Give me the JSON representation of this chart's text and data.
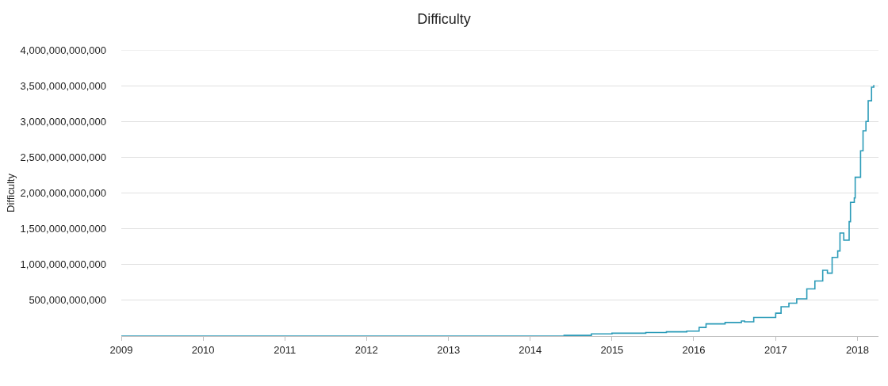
{
  "chart_data": {
    "type": "step",
    "title": "Difficulty",
    "ylabel": "Difficulty",
    "x": [
      "2009-01-01",
      "2013-01-01",
      "2014-01-01",
      "2014-06-01",
      "2014-10-01",
      "2015-01-01",
      "2015-06-01",
      "2015-09-01",
      "2015-12-01",
      "2016-01-25",
      "2016-02-25",
      "2016-05-20",
      "2016-08-01",
      "2016-08-15",
      "2016-09-25",
      "2016-11-15",
      "2017-01-01",
      "2017-01-25",
      "2017-03-01",
      "2017-04-05",
      "2017-04-25",
      "2017-05-20",
      "2017-06-25",
      "2017-07-30",
      "2017-08-20",
      "2017-09-10",
      "2017-10-05",
      "2017-10-15",
      "2017-10-30",
      "2017-11-01",
      "2017-11-20",
      "2017-11-25",
      "2017-12-01",
      "2017-12-18",
      "2017-12-22",
      "2018-01-15",
      "2018-01-26",
      "2018-02-08",
      "2018-02-18",
      "2018-03-05",
      "2018-03-15"
    ],
    "series": [
      {
        "color": "#2b9bb8",
        "values": [
          0,
          0,
          0,
          10000000000,
          30000000000,
          40000000000,
          50000000000,
          60000000000,
          70000000000,
          120000000000,
          170000000000,
          190000000000,
          210000000000,
          200000000000,
          260000000000,
          260000000000,
          320000000000,
          410000000000,
          460000000000,
          520000000000,
          520000000000,
          660000000000,
          770000000000,
          920000000000,
          880000000000,
          1100000000000,
          1190000000000,
          1440000000000,
          1440000000000,
          1340000000000,
          1340000000000,
          1600000000000,
          1870000000000,
          1930000000000,
          2220000000000,
          2590000000000,
          2870000000000,
          3000000000000,
          3290000000000,
          3480000000000,
          3510000000000
        ]
      }
    ],
    "xlim": [
      "2009-01-01",
      "2018-04-05"
    ],
    "xticks": [
      {
        "value": "2009",
        "label": "2009"
      },
      {
        "value": "2010",
        "label": "2010"
      },
      {
        "value": "2011",
        "label": "2011"
      },
      {
        "value": "2012",
        "label": "2012"
      },
      {
        "value": "2013",
        "label": "2013"
      },
      {
        "value": "2014",
        "label": "2014"
      },
      {
        "value": "2015",
        "label": "2015"
      },
      {
        "value": "2016",
        "label": "2016"
      },
      {
        "value": "2017",
        "label": "2017"
      },
      {
        "value": "2018",
        "label": "2018"
      }
    ],
    "ylim": [
      0,
      4000000000000
    ],
    "yticks": [
      {
        "value": 500000000000,
        "label": "500,000,000,000"
      },
      {
        "value": 1000000000000,
        "label": "1,000,000,000,000"
      },
      {
        "value": 1500000000000,
        "label": "1,500,000,000,000"
      },
      {
        "value": 2000000000000,
        "label": "2,000,000,000,000"
      },
      {
        "value": 2500000000000,
        "label": "2,500,000,000,000"
      },
      {
        "value": 3000000000000,
        "label": "3,000,000,000,000"
      },
      {
        "value": 3500000000000,
        "label": "3,500,000,000,000"
      },
      {
        "value": 4000000000000,
        "label": "4,000,000,000,000"
      }
    ],
    "grid": "y",
    "marker": "none",
    "line_style": "solid"
  }
}
